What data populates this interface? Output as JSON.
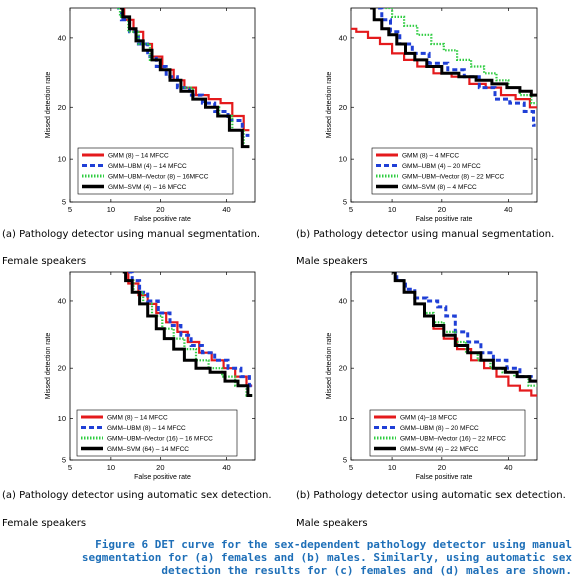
{
  "figure": {
    "label": "Figure 6",
    "caption": "DET curve for the sex-dependent pathology detector using manual segmentation for (a) females and (b) males. Similarly, using automatic sex detection the results for (c) females and (d) males are shown."
  },
  "panels": [
    {
      "caption": "(a) Pathology detector using manual segmentation.",
      "speakers": "Female speakers"
    },
    {
      "caption": "(b) Pathology detector using manual segmentation.",
      "speakers": "Male speakers"
    },
    {
      "caption": "(a) Pathology detector using automatic sex detection.",
      "speakers": "Female speakers"
    },
    {
      "caption": "(b) Pathology detector using automatic sex detection.",
      "speakers": "Male speakers"
    }
  ],
  "chart_data": [
    {
      "type": "line",
      "xlabel": "False positive rate",
      "ylabel": "Missed detection rate",
      "x_ticks": [
        5,
        10,
        20,
        40
      ],
      "y_ticks": [
        5,
        10,
        20,
        40
      ],
      "xlim": [
        5,
        50
      ],
      "ylim": [
        5,
        50
      ],
      "scale": "normal-deviate",
      "legend_position": "bottom-left",
      "series": [
        {
          "name": "GMM (8) – 14 MFCC",
          "color": "#e41a1c",
          "style": "solid",
          "points": [
            [
              11.5,
              50
            ],
            [
              13,
              46
            ],
            [
              15,
              42
            ],
            [
              17,
              38
            ],
            [
              19,
              34
            ],
            [
              22,
              30
            ],
            [
              25,
              27
            ],
            [
              28,
              25
            ],
            [
              32,
              23
            ],
            [
              36,
              22
            ],
            [
              40,
              21
            ],
            [
              44,
              18
            ],
            [
              48,
              15
            ]
          ]
        },
        {
          "name": "GMM–UBM (4) – 14 MFCC",
          "color": "#1f3fd6",
          "style": "dashed",
          "points": [
            [
              11,
              50
            ],
            [
              12.5,
              46
            ],
            [
              14,
              42
            ],
            [
              16,
              38
            ],
            [
              18,
              34
            ],
            [
              20,
              31
            ],
            [
              23,
              28
            ],
            [
              26,
              25
            ],
            [
              30,
              23
            ],
            [
              34,
              21
            ],
            [
              38,
              19
            ],
            [
              43,
              17
            ],
            [
              48,
              14
            ]
          ]
        },
        {
          "name": "GMM–UBM–iVector (8) – 16MFCC",
          "color": "#2ecc40",
          "style": "dotted",
          "points": [
            [
              11,
              50
            ],
            [
              12,
              47
            ],
            [
              14,
              42
            ],
            [
              16,
              38
            ],
            [
              19,
              33
            ],
            [
              21,
              30
            ],
            [
              24,
              27
            ],
            [
              27,
              25
            ],
            [
              31,
              22
            ],
            [
              35,
              20
            ],
            [
              40,
              18
            ],
            [
              44,
              15
            ],
            [
              48,
              12
            ]
          ]
        },
        {
          "name": "GMM–SVM (4) – 16 MFCC",
          "color": "#000000",
          "style": "solid",
          "points": [
            [
              11.5,
              50
            ],
            [
              12.5,
              47
            ],
            [
              14,
              43
            ],
            [
              15,
              39
            ],
            [
              17,
              36
            ],
            [
              19,
              33
            ],
            [
              21,
              30
            ],
            [
              24,
              27
            ],
            [
              27,
              24
            ],
            [
              31,
              22
            ],
            [
              35,
              20
            ],
            [
              39,
              18
            ],
            [
              43,
              15
            ],
            [
              48,
              12
            ]
          ]
        }
      ]
    },
    {
      "type": "line",
      "xlabel": "False positive rate",
      "ylabel": "Missed detection rate",
      "x_ticks": [
        5,
        10,
        20,
        40
      ],
      "y_ticks": [
        5,
        10,
        20,
        40
      ],
      "xlim": [
        5,
        50
      ],
      "ylim": [
        5,
        50
      ],
      "scale": "normal-deviate",
      "legend_position": "bottom-left",
      "series": [
        {
          "name": "GMM (8) – 4 MFCC",
          "color": "#e41a1c",
          "style": "solid",
          "points": [
            [
              5,
              43
            ],
            [
              6,
              42
            ],
            [
              7.5,
              40
            ],
            [
              9,
              38
            ],
            [
              11,
              35
            ],
            [
              13,
              33
            ],
            [
              16,
              31
            ],
            [
              20,
              29
            ],
            [
              25,
              28
            ],
            [
              30,
              26
            ],
            [
              35,
              25
            ],
            [
              40,
              23
            ],
            [
              45,
              22
            ],
            [
              50,
              20
            ]
          ]
        },
        {
          "name": "GMM–UBM (4) – 20 MFCC",
          "color": "#1f3fd6",
          "style": "dashed",
          "points": [
            [
              8,
              50
            ],
            [
              9,
              46
            ],
            [
              10.5,
              42
            ],
            [
              12,
              38
            ],
            [
              15,
              35
            ],
            [
              19,
              32
            ],
            [
              24,
              30
            ],
            [
              28,
              28
            ],
            [
              33,
              25
            ],
            [
              38,
              22
            ],
            [
              43,
              21
            ],
            [
              48,
              19
            ],
            [
              49.5,
              16
            ]
          ]
        },
        {
          "name": "GMM–UBM–iVector (8) – 22 MFCC",
          "color": "#2ecc40",
          "style": "dotted",
          "points": [
            [
              9,
              50
            ],
            [
              11,
              47
            ],
            [
              13,
              44
            ],
            [
              16,
              41
            ],
            [
              19,
              38
            ],
            [
              22,
              36
            ],
            [
              26,
              33
            ],
            [
              30,
              31
            ],
            [
              34,
              29
            ],
            [
              38,
              27
            ],
            [
              42,
              25
            ],
            [
              46,
              23
            ],
            [
              50,
              21
            ]
          ]
        },
        {
          "name": "GMM–SVM (8) – 4 MFCC",
          "color": "#000000",
          "style": "solid",
          "points": [
            [
              7,
              50
            ],
            [
              8,
              46
            ],
            [
              9,
              43
            ],
            [
              10,
              41
            ],
            [
              11.5,
              38
            ],
            [
              13,
              35
            ],
            [
              15,
              33
            ],
            [
              18,
              31
            ],
            [
              22,
              29
            ],
            [
              27,
              28
            ],
            [
              32,
              27
            ],
            [
              37,
              26
            ],
            [
              42,
              25
            ],
            [
              46,
              24
            ],
            [
              50,
              23
            ]
          ]
        }
      ]
    },
    {
      "type": "line",
      "xlabel": "False positive rate",
      "ylabel": "Missed detection rate",
      "x_ticks": [
        5,
        10,
        20,
        40
      ],
      "y_ticks": [
        5,
        10,
        20,
        40
      ],
      "xlim": [
        5,
        50
      ],
      "ylim": [
        5,
        50
      ],
      "scale": "normal-deviate",
      "legend_position": "bottom-left",
      "series": [
        {
          "name": "GMM (8) – 14 MFCC",
          "color": "#e41a1c",
          "style": "solid",
          "points": [
            [
              12,
              50
            ],
            [
              14,
              46
            ],
            [
              16,
              42
            ],
            [
              18,
              39
            ],
            [
              20,
              36
            ],
            [
              23,
              33
            ],
            [
              26,
              30
            ],
            [
              29,
              27
            ],
            [
              33,
              24
            ],
            [
              37,
              22
            ],
            [
              41,
              20
            ],
            [
              45,
              18
            ],
            [
              49,
              16
            ]
          ]
        },
        {
          "name": "GMM–UBM (8) – 14 MFCC",
          "color": "#1f3fd6",
          "style": "dashed",
          "points": [
            [
              13,
              50
            ],
            [
              14.5,
              47
            ],
            [
              16,
              43
            ],
            [
              18,
              40
            ],
            [
              21,
              36
            ],
            [
              24,
              32
            ],
            [
              27,
              29
            ],
            [
              30,
              26
            ],
            [
              34,
              24
            ],
            [
              38,
              22
            ],
            [
              43,
              20
            ],
            [
              47,
              18
            ],
            [
              49,
              16
            ]
          ]
        },
        {
          "name": "GMM–UBM–iVector (16) – 16 MFCC",
          "color": "#2ecc40",
          "style": "dotted",
          "points": [
            [
              12,
              50
            ],
            [
              13,
              47
            ],
            [
              15,
              43
            ],
            [
              17,
              39
            ],
            [
              19,
              35
            ],
            [
              22,
              31
            ],
            [
              25,
              28
            ],
            [
              28,
              25
            ],
            [
              32,
              22
            ],
            [
              36,
              20
            ],
            [
              41,
              18
            ],
            [
              45,
              16
            ],
            [
              49,
              14
            ]
          ]
        },
        {
          "name": "GMM–SVM (64) – 14 MFCC",
          "color": "#000000",
          "style": "solid",
          "points": [
            [
              12,
              50
            ],
            [
              13,
              47
            ],
            [
              14.5,
              43
            ],
            [
              16,
              39
            ],
            [
              18,
              35
            ],
            [
              20,
              31
            ],
            [
              22,
              28
            ],
            [
              25,
              25
            ],
            [
              28,
              22
            ],
            [
              32,
              20
            ],
            [
              37,
              19
            ],
            [
              42,
              17
            ],
            [
              46,
              16
            ],
            [
              49,
              14
            ]
          ]
        }
      ]
    },
    {
      "type": "line",
      "xlabel": "False positive rate",
      "ylabel": "Missed detection rate",
      "x_ticks": [
        5,
        10,
        20,
        40
      ],
      "y_ticks": [
        5,
        10,
        20,
        40
      ],
      "xlim": [
        5,
        50
      ],
      "ylim": [
        5,
        50
      ],
      "scale": "normal-deviate",
      "legend_position": "bottom-left",
      "series": [
        {
          "name": "GMM (4)–18 MFCC",
          "color": "#e41a1c",
          "style": "solid",
          "points": [
            [
              10,
              50
            ],
            [
              11,
              47
            ],
            [
              13,
              43
            ],
            [
              15,
              39
            ],
            [
              17,
              35
            ],
            [
              19,
              31
            ],
            [
              22,
              28
            ],
            [
              26,
              25
            ],
            [
              30,
              22
            ],
            [
              34,
              20
            ],
            [
              38,
              18
            ],
            [
              42,
              16
            ],
            [
              46,
              15
            ],
            [
              50,
              14
            ]
          ]
        },
        {
          "name": "GMM–UBM (8) – 20 MFCC",
          "color": "#1f3fd6",
          "style": "dashed",
          "points": [
            [
              10,
              50
            ],
            [
              11.5,
              47
            ],
            [
              13,
              44
            ],
            [
              15,
              41
            ],
            [
              18,
              40
            ],
            [
              20,
              38
            ],
            [
              22,
              35
            ],
            [
              25,
              30
            ],
            [
              29,
              27
            ],
            [
              33,
              24
            ],
            [
              37,
              22
            ],
            [
              42,
              20
            ],
            [
              46,
              18
            ],
            [
              50,
              17
            ]
          ]
        },
        {
          "name": "GMM–UBM–iVector (16) – 22 MFCC",
          "color": "#2ecc40",
          "style": "dotted",
          "points": [
            [
              10,
              50
            ],
            [
              11,
              47
            ],
            [
              13,
              43
            ],
            [
              15,
              39
            ],
            [
              17,
              36
            ],
            [
              19,
              33
            ],
            [
              22,
              30
            ],
            [
              25,
              27
            ],
            [
              28,
              24
            ],
            [
              32,
              22
            ],
            [
              36,
              20
            ],
            [
              40,
              19
            ],
            [
              44,
              18
            ],
            [
              50,
              16
            ]
          ]
        },
        {
          "name": "GMM–SVM (4) – 22 MFCC",
          "color": "#000000",
          "style": "solid",
          "points": [
            [
              10,
              50
            ],
            [
              11,
              47
            ],
            [
              13,
              43
            ],
            [
              15,
              39
            ],
            [
              17,
              35
            ],
            [
              19,
              32
            ],
            [
              22,
              29
            ],
            [
              25,
              26
            ],
            [
              29,
              24
            ],
            [
              33,
              22
            ],
            [
              37,
              20
            ],
            [
              41,
              19
            ],
            [
              45,
              18
            ],
            [
              50,
              17
            ]
          ]
        }
      ]
    }
  ]
}
